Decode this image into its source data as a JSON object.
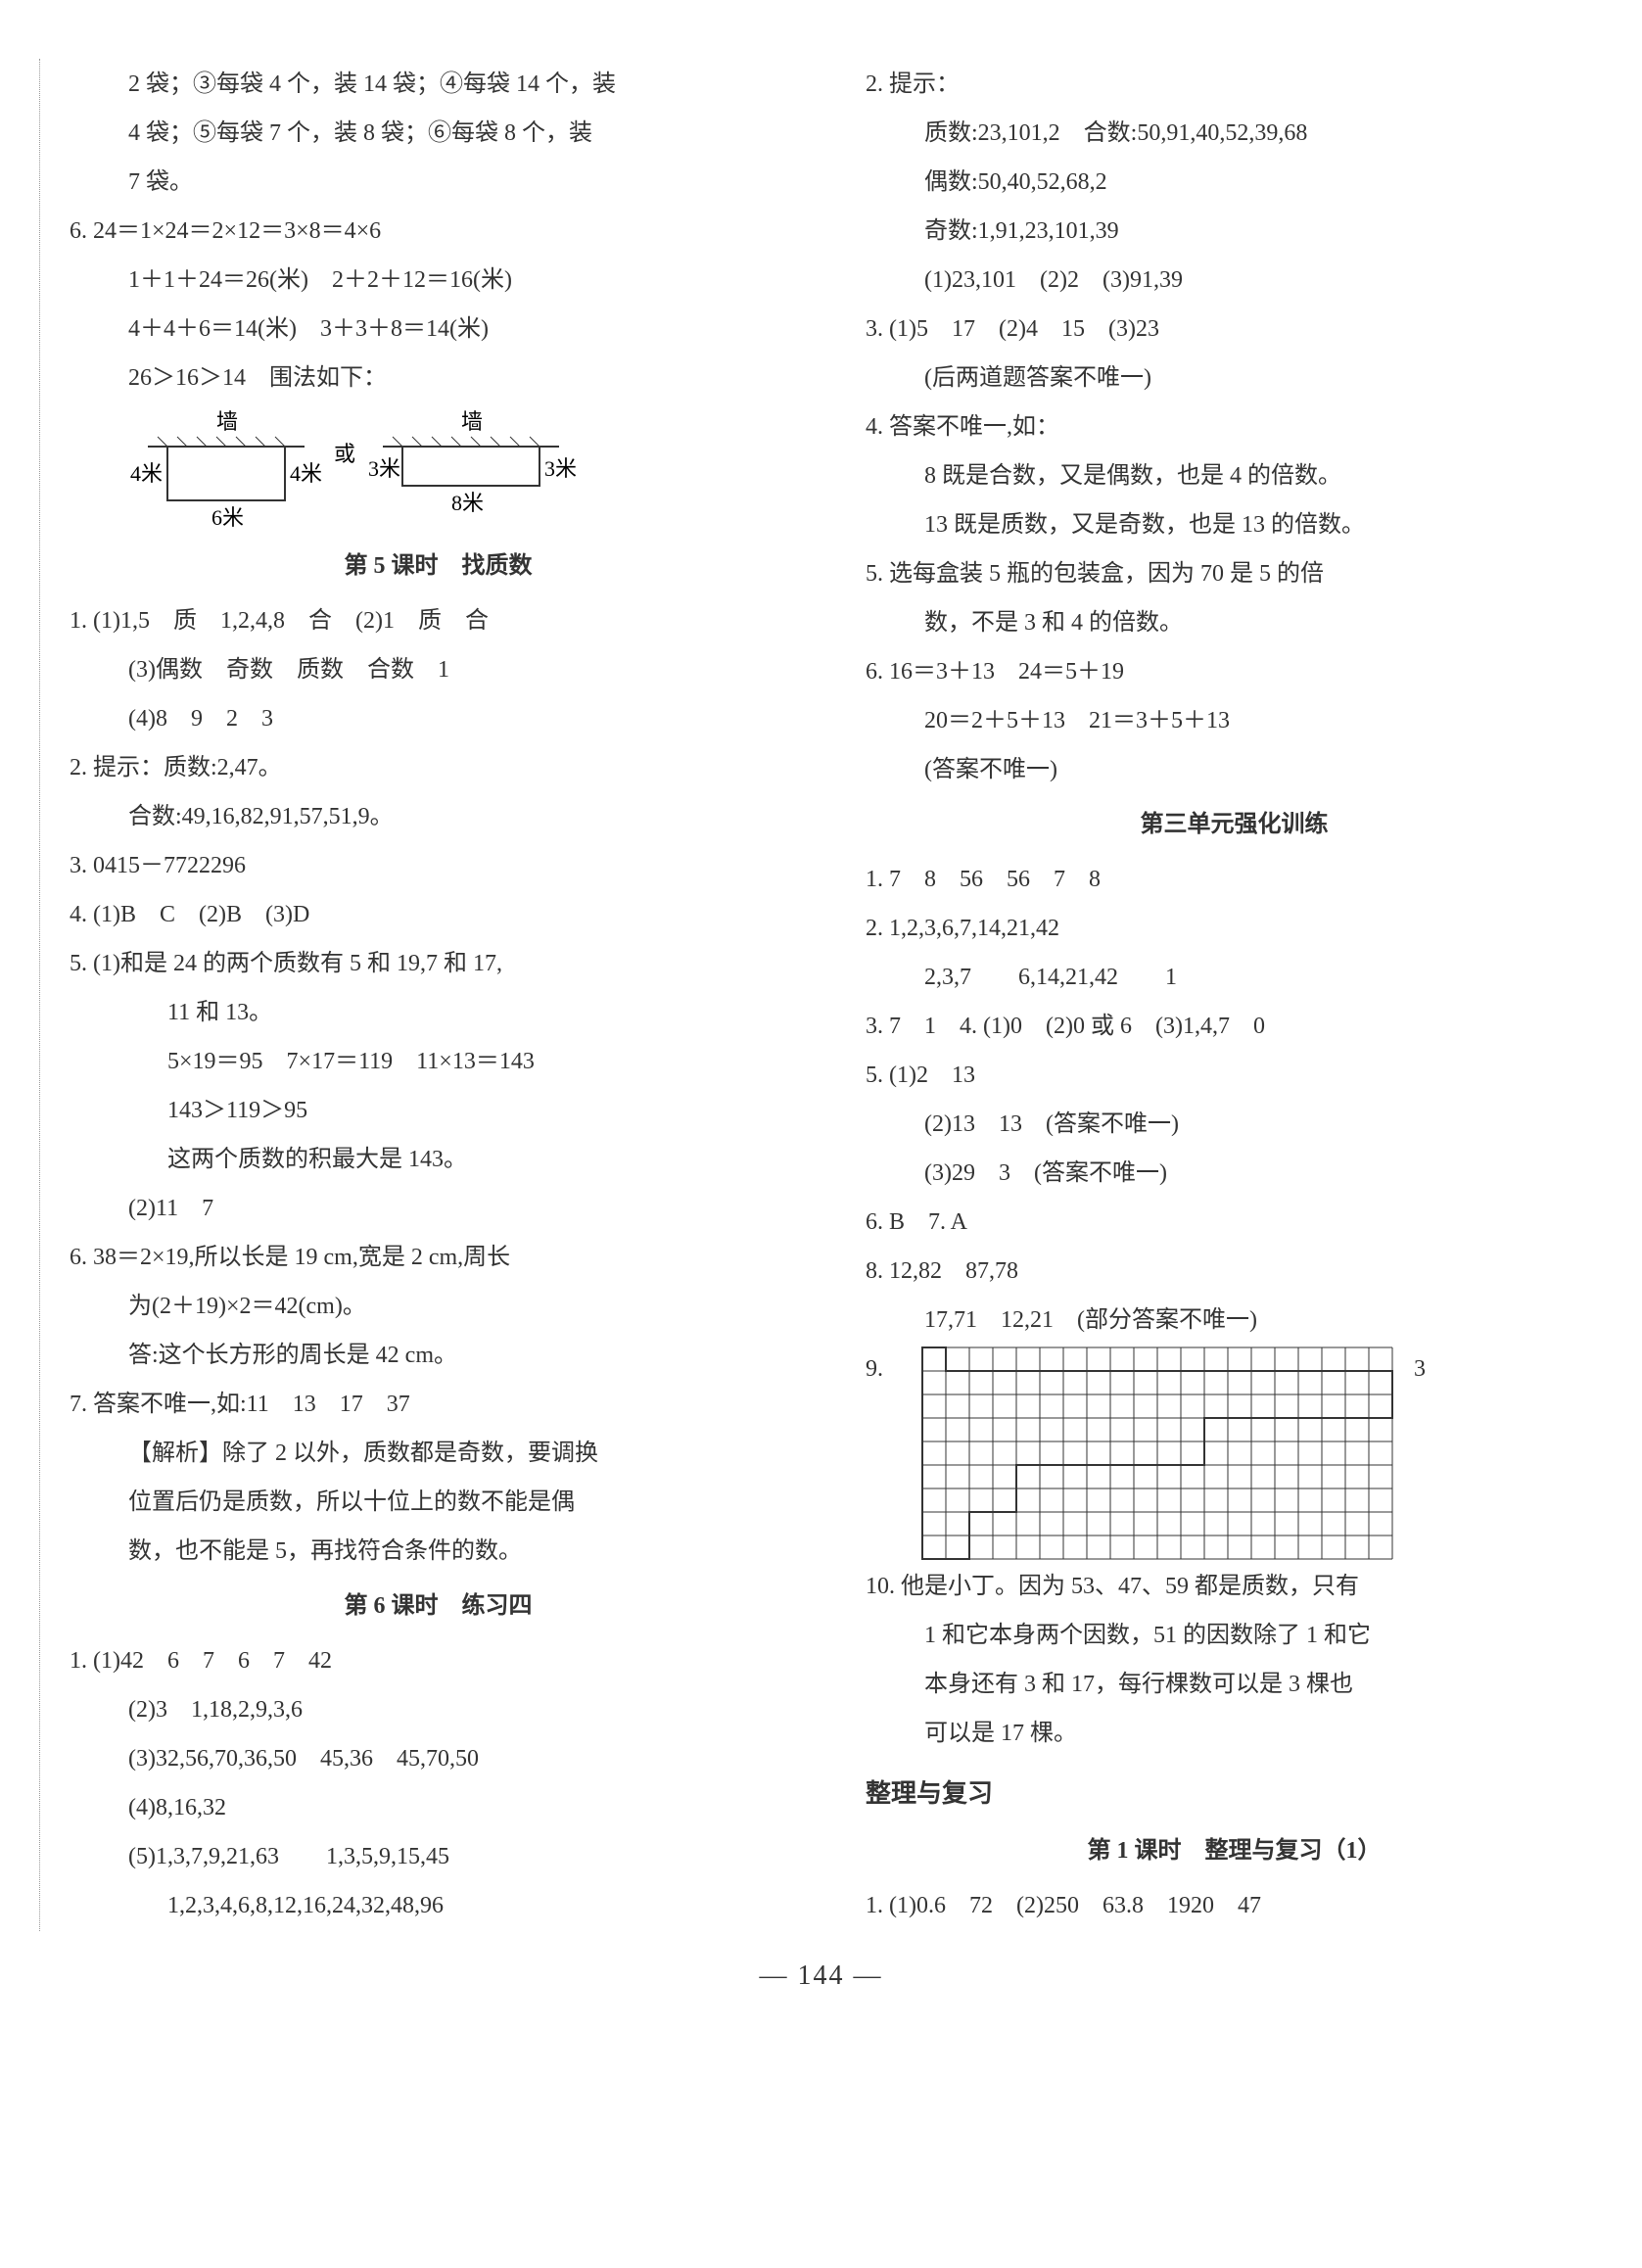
{
  "page_number": "— 144 —",
  "left": {
    "p0a": "2 袋；③每袋 4 个，装 14 袋；④每袋 14 个，装",
    "p0b": "4 袋；⑤每袋 7 个，装 8 袋；⑥每袋 8 个，装",
    "p0c": "7 袋。",
    "q6a": "6.  24＝1×24＝2×12＝3×8＝4×6",
    "q6b": "1＋1＋24＝26(米)　2＋2＋12＝16(米)",
    "q6c": "4＋4＋6＝14(米)　3＋3＋8＝14(米)",
    "q6d": "26＞16＞14　围法如下：",
    "diag": {
      "wall": "墙",
      "or": "或",
      "m4": "4米",
      "m6": "6米",
      "m3": "3米",
      "m8": "8米"
    },
    "sec5_title": "第 5 课时　找质数",
    "s5_1a": "1.  (1)1,5　质　1,2,4,8　合　(2)1　质　合",
    "s5_1b": "(3)偶数　奇数　质数　合数　1",
    "s5_1c": "(4)8　9　2　3",
    "s5_2a": "2.  提示：质数:2,47。",
    "s5_2b": "合数:49,16,82,91,57,51,9。",
    "s5_3": "3.  0415－7722296",
    "s5_4": "4.  (1)B　C　(2)B　(3)D",
    "s5_5a": "5.  (1)和是 24 的两个质数有 5 和 19,7 和 17,",
    "s5_5b": "11 和 13。",
    "s5_5c": "5×19＝95　7×17＝119　11×13＝143",
    "s5_5d": "143＞119＞95",
    "s5_5e": "这两个质数的积最大是 143。",
    "s5_5f": "(2)11　7",
    "s5_6a": "6.  38＝2×19,所以长是 19 cm,宽是 2 cm,周长",
    "s5_6b": "为(2＋19)×2＝42(cm)。",
    "s5_6c": "答:这个长方形的周长是 42 cm。",
    "s5_7a": "7.  答案不唯一,如:11　13　17　37",
    "s5_7b": "【解析】除了 2 以外，质数都是奇数，要调换",
    "s5_7c": "位置后仍是质数，所以十位上的数不能是偶",
    "s5_7d": "数，也不能是 5，再找符合条件的数。",
    "sec6_title": "第 6 课时　练习四",
    "s6_1a": "1.  (1)42　6　7　6　7　42",
    "s6_1b": "(2)3　1,18,2,9,3,6",
    "s6_1c": "(3)32,56,70,36,50　45,36　45,70,50",
    "s6_1d": "(4)8,16,32",
    "s6_1e": "(5)1,3,7,9,21,63　　1,3,5,9,15,45",
    "s6_1f": "1,2,3,4,6,8,12,16,24,32,48,96"
  },
  "right": {
    "r2a": "2.  提示：",
    "r2b": "质数:23,101,2　合数:50,91,40,52,39,68",
    "r2c": "偶数:50,40,52,68,2",
    "r2d": "奇数:1,91,23,101,39",
    "r2e": "(1)23,101　(2)2　(3)91,39",
    "r3a": "3.  (1)5　17　(2)4　15　(3)23",
    "r3b": "(后两道题答案不唯一)",
    "r4a": "4.  答案不唯一,如：",
    "r4b": "8 既是合数，又是偶数，也是 4 的倍数。",
    "r4c": "13 既是质数，又是奇数，也是 13 的倍数。",
    "r5a": "5.  选每盒装 5 瓶的包装盒，因为 70 是 5 的倍",
    "r5b": "数，不是 3 和 4 的倍数。",
    "r6a": "6.  16＝3＋13　24＝5＋19",
    "r6b": "20＝2＋5＋13　21＝3＋5＋13",
    "r6c": "(答案不唯一)",
    "u3_title": "第三单元强化训练",
    "u3_1": "1.  7　8　56　56　7　8",
    "u3_2a": "2.  1,2,3,6,7,14,21,42",
    "u3_2b": "2,3,7　　6,14,21,42　　1",
    "u3_34": "3.  7　1　4.  (1)0　(2)0 或 6　(3)1,4,7　0",
    "u3_5a": "5.  (1)2　13",
    "u3_5b": "(2)13　13　(答案不唯一)",
    "u3_5c": "(3)29　3　(答案不唯一)",
    "u3_67": "6.  B　7.  A",
    "u3_8a": "8.  12,82　87,78",
    "u3_8b": "17,71　12,21　(部分答案不唯一)",
    "u3_9label": "9.",
    "u3_9right": "3",
    "u3_10a": "10.  他是小丁。因为 53、47、59 都是质数，只有",
    "u3_10b": "1 和它本身两个因数，51 的因数除了 1 和它",
    "u3_10c": "本身还有 3 和 17，每行棵数可以是 3 棵也",
    "u3_10d": "可以是 17 棵。",
    "review_title": "整理与复习",
    "rev1_title": "第 1 课时　整理与复习（1）",
    "rev1_1": "1.  (1)0.6　72　(2)250　63.8　1920　47"
  },
  "grid": {
    "cols": 20,
    "rows": 9,
    "cell": 24,
    "stroke": "#333333",
    "fill_rows": [
      {
        "r": 0,
        "c0": 0,
        "c1": 1
      },
      {
        "r": 1,
        "c0": 0,
        "c1": 20
      },
      {
        "r": 2,
        "c0": 0,
        "c1": 20
      },
      {
        "r": 3,
        "c0": 0,
        "c1": 12
      },
      {
        "r": 4,
        "c0": 0,
        "c1": 12
      },
      {
        "r": 5,
        "c0": 0,
        "c1": 4
      },
      {
        "r": 6,
        "c0": 0,
        "c1": 4
      },
      {
        "r": 7,
        "c0": 0,
        "c1": 2
      },
      {
        "r": 8,
        "c0": 0,
        "c1": 2
      }
    ],
    "thick": 2
  }
}
